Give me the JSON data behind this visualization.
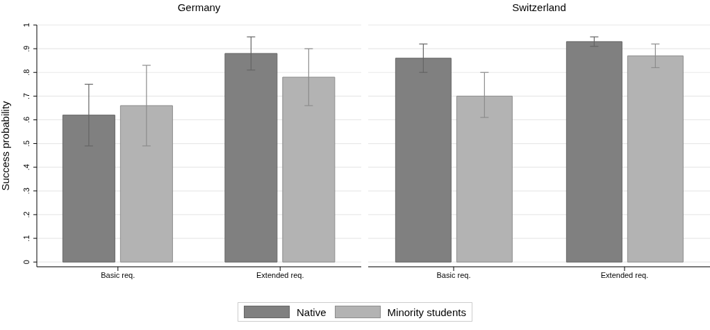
{
  "chart_data": [
    {
      "type": "bar",
      "title": "Germany",
      "ylabel": "Success probability",
      "categories": [
        "Basic req.",
        "Extended req."
      ],
      "series": [
        {
          "name": "Native",
          "color": "#808080",
          "values": [
            0.62,
            0.88
          ],
          "errors": [
            [
              0.49,
              0.75
            ],
            [
              0.81,
              0.95
            ]
          ]
        },
        {
          "name": "Minority students",
          "color": "#b3b3b3",
          "values": [
            0.66,
            0.78
          ],
          "errors": [
            [
              0.49,
              0.83
            ],
            [
              0.66,
              0.9
            ]
          ]
        }
      ],
      "ylim": [
        -0.02,
        1
      ],
      "yticks": [
        {
          "value": 0,
          "label": "0"
        },
        {
          "value": 0.1,
          "label": ".1"
        },
        {
          "value": 0.2,
          "label": ".2"
        },
        {
          "value": 0.3,
          "label": ".3"
        },
        {
          "value": 0.4,
          "label": ".4"
        },
        {
          "value": 0.5,
          "label": ".5"
        },
        {
          "value": 0.6,
          "label": ".6"
        },
        {
          "value": 0.7,
          "label": ".7"
        },
        {
          "value": 0.8,
          "label": ".8"
        },
        {
          "value": 0.9,
          "label": ".9"
        },
        {
          "value": 1,
          "label": "1"
        }
      ],
      "grid": "y",
      "legend": "bottom"
    },
    {
      "type": "bar",
      "title": "Switzerland",
      "categories": [
        "Basic req.",
        "Extended req."
      ],
      "series": [
        {
          "color": "#808080",
          "values": [
            0.86,
            0.93
          ],
          "errors": [
            [
              0.8,
              0.92
            ],
            [
              0.91,
              0.95
            ]
          ]
        },
        {
          "color": "#b3b3b3",
          "values": [
            0.7,
            0.87
          ],
          "errors": [
            [
              0.61,
              0.8
            ],
            [
              0.82,
              0.92
            ]
          ]
        }
      ],
      "ylim": [
        -0.02,
        1
      ],
      "yticks": [
        0,
        0.1,
        0.2,
        0.3,
        0.4,
        0.5,
        0.6,
        0.7,
        0.8,
        0.9,
        1
      ],
      "grid": "y",
      "tick_labels": "x"
    }
  ]
}
